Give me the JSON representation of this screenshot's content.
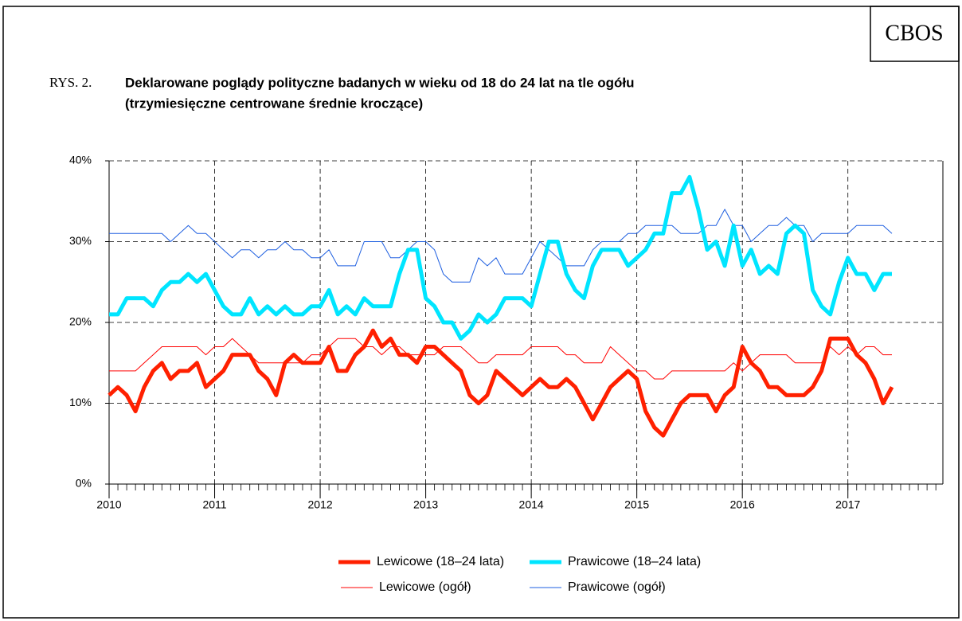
{
  "header": {
    "label": "CBOS"
  },
  "figure": {
    "number": "RYS. 2.",
    "title_line1": "Deklarowane poglądy polityczne badanych w wieku od 18 do 24 lat na tle ogółu",
    "title_line2": "(trzymiesięczne centrowane średnie kroczące)"
  },
  "chart_data": {
    "type": "line",
    "x": [
      2010,
      2010.083,
      2010.167,
      2010.25,
      2010.333,
      2010.417,
      2010.5,
      2010.583,
      2010.667,
      2010.75,
      2010.833,
      2010.917,
      2011,
      2011.083,
      2011.167,
      2011.25,
      2011.333,
      2011.417,
      2011.5,
      2011.583,
      2011.667,
      2011.75,
      2011.833,
      2011.917,
      2012,
      2012.083,
      2012.167,
      2012.25,
      2012.333,
      2012.417,
      2012.5,
      2012.583,
      2012.667,
      2012.75,
      2012.833,
      2012.917,
      2013,
      2013.083,
      2013.167,
      2013.25,
      2013.333,
      2013.417,
      2013.5,
      2013.583,
      2013.667,
      2013.75,
      2013.833,
      2013.917,
      2014,
      2014.083,
      2014.167,
      2014.25,
      2014.333,
      2014.417,
      2014.5,
      2014.583,
      2014.667,
      2014.75,
      2014.833,
      2014.917,
      2015,
      2015.083,
      2015.167,
      2015.25,
      2015.333,
      2015.417,
      2015.5,
      2015.583,
      2015.667,
      2015.75,
      2015.833,
      2015.917,
      2016,
      2016.083,
      2016.167,
      2016.25,
      2016.333,
      2016.417,
      2016.5,
      2016.583,
      2016.667,
      2016.75,
      2016.833,
      2016.917,
      2017,
      2017.083,
      2017.167,
      2017.25,
      2017.333,
      2017.417
    ],
    "series": [
      {
        "name": "Lewicowe (18–24 lata)",
        "color": "#ff2000",
        "line_width": 5,
        "values": [
          11,
          12,
          11,
          9,
          12,
          14,
          15,
          13,
          14,
          14,
          15,
          12,
          13,
          14,
          16,
          16,
          16,
          14,
          13,
          11,
          15,
          16,
          15,
          15,
          15,
          17,
          14,
          14,
          16,
          17,
          19,
          17,
          18,
          16,
          16,
          15,
          17,
          17,
          16,
          15,
          14,
          11,
          10,
          11,
          14,
          13,
          12,
          11,
          12,
          13,
          12,
          12,
          13,
          12,
          10,
          8,
          10,
          12,
          13,
          14,
          13,
          9,
          7,
          6,
          8,
          10,
          11,
          11,
          11,
          9,
          11,
          12,
          17,
          15,
          14,
          12,
          12,
          11,
          11,
          11,
          12,
          14,
          18,
          18,
          18,
          16,
          15,
          13,
          10,
          12
        ]
      },
      {
        "name": "Prawicowe (18–24 lata)",
        "color": "#00e5ff",
        "line_width": 5,
        "values": [
          21,
          21,
          23,
          23,
          23,
          22,
          24,
          25,
          25,
          26,
          25,
          26,
          24,
          22,
          21,
          21,
          23,
          21,
          22,
          21,
          22,
          21,
          21,
          22,
          22,
          24,
          21,
          22,
          21,
          23,
          22,
          22,
          22,
          26,
          29,
          29,
          23,
          22,
          20,
          20,
          18,
          19,
          21,
          20,
          21,
          23,
          23,
          23,
          22,
          26,
          30,
          30,
          26,
          24,
          23,
          27,
          29,
          29,
          29,
          27,
          28,
          29,
          31,
          31,
          36,
          36,
          38,
          34,
          29,
          30,
          27,
          32,
          27,
          29,
          26,
          27,
          26,
          31,
          32,
          31,
          24,
          22,
          21,
          25,
          28,
          26,
          26,
          24,
          26,
          26
        ]
      },
      {
        "name": "Lewicowe (ogół)",
        "color": "#ff0000",
        "line_width": 1,
        "values": [
          14,
          14,
          14,
          14,
          15,
          16,
          17,
          17,
          17,
          17,
          17,
          16,
          17,
          17,
          18,
          17,
          16,
          15,
          15,
          15,
          15,
          15,
          15,
          16,
          16,
          17,
          18,
          18,
          18,
          17,
          17,
          16,
          17,
          17,
          16,
          16,
          16,
          16,
          17,
          17,
          17,
          16,
          15,
          15,
          16,
          16,
          16,
          16,
          17,
          17,
          17,
          17,
          16,
          16,
          15,
          15,
          15,
          17,
          16,
          15,
          14,
          14,
          13,
          13,
          14,
          14,
          14,
          14,
          14,
          14,
          14,
          15,
          14,
          15,
          16,
          16,
          16,
          16,
          15,
          15,
          15,
          15,
          17,
          16,
          17,
          16,
          17,
          17,
          16,
          16
        ]
      },
      {
        "name": "Prawicowe (ogół)",
        "color": "#1e5fe0",
        "line_width": 1,
        "values": [
          31,
          31,
          31,
          31,
          31,
          31,
          31,
          30,
          31,
          32,
          31,
          31,
          30,
          29,
          28,
          29,
          29,
          28,
          29,
          29,
          30,
          29,
          29,
          28,
          28,
          29,
          27,
          27,
          27,
          30,
          30,
          30,
          28,
          28,
          29,
          30,
          30,
          29,
          26,
          25,
          25,
          25,
          28,
          27,
          28,
          26,
          26,
          26,
          28,
          30,
          29,
          28,
          27,
          27,
          27,
          29,
          30,
          30,
          30,
          31,
          31,
          32,
          32,
          32,
          32,
          31,
          31,
          31,
          32,
          32,
          34,
          32,
          32,
          30,
          31,
          32,
          32,
          33,
          32,
          32,
          30,
          31,
          31,
          31,
          31,
          32,
          32,
          32,
          32,
          31
        ]
      }
    ],
    "xlim": [
      2010,
      2017.9
    ],
    "xticks": [
      2010,
      2011,
      2012,
      2013,
      2014,
      2015,
      2016,
      2017
    ],
    "ylim": [
      0,
      40
    ],
    "yticks": [
      {
        "value": 0,
        "label": "0%"
      },
      {
        "value": 10,
        "label": "10%"
      },
      {
        "value": 20,
        "label": "20%"
      },
      {
        "value": 30,
        "label": "30%"
      },
      {
        "value": 40,
        "label": "40%"
      }
    ],
    "grid": true
  }
}
